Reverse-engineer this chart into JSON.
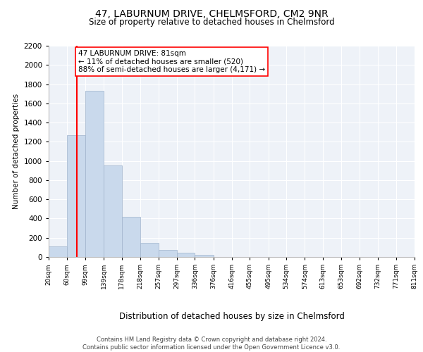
{
  "title_line1": "47, LABURNUM DRIVE, CHELMSFORD, CM2 9NR",
  "title_line2": "Size of property relative to detached houses in Chelmsford",
  "xlabel": "Distribution of detached houses by size in Chelmsford",
  "ylabel": "Number of detached properties",
  "footnote": "Contains HM Land Registry data © Crown copyright and database right 2024.\nContains public sector information licensed under the Open Government Licence v3.0.",
  "bar_edges": [
    20,
    60,
    99,
    139,
    178,
    218,
    257,
    297,
    336,
    376,
    416,
    455,
    495,
    534,
    574,
    613,
    653,
    692,
    732,
    771,
    811
  ],
  "bar_heights": [
    110,
    1270,
    1730,
    950,
    415,
    150,
    75,
    42,
    25,
    0,
    0,
    0,
    0,
    0,
    0,
    0,
    0,
    0,
    0,
    0
  ],
  "tick_labels": [
    "20sqm",
    "60sqm",
    "99sqm",
    "139sqm",
    "178sqm",
    "218sqm",
    "257sqm",
    "297sqm",
    "336sqm",
    "376sqm",
    "416sqm",
    "455sqm",
    "495sqm",
    "534sqm",
    "574sqm",
    "613sqm",
    "653sqm",
    "692sqm",
    "732sqm",
    "771sqm",
    "811sqm"
  ],
  "bar_color": "#c9d9ec",
  "bar_edge_color": "#a0b4cc",
  "vline_x": 81,
  "vline_color": "red",
  "ylim": [
    0,
    2200
  ],
  "yticks": [
    0,
    200,
    400,
    600,
    800,
    1000,
    1200,
    1400,
    1600,
    1800,
    2000,
    2200
  ],
  "annotation_text": "47 LABURNUM DRIVE: 81sqm\n← 11% of detached houses are smaller (520)\n88% of semi-detached houses are larger (4,171) →",
  "annotation_box_color": "white",
  "annotation_box_edge_color": "red",
  "bg_color": "#eef2f8",
  "grid_color": "white",
  "title1_fontsize": 10,
  "title2_fontsize": 8.5,
  "footnote_fontsize": 6.0,
  "ylabel_fontsize": 7.5,
  "xlabel_fontsize": 8.5,
  "ytick_fontsize": 7.5,
  "xtick_fontsize": 6.5,
  "annot_fontsize": 7.5
}
